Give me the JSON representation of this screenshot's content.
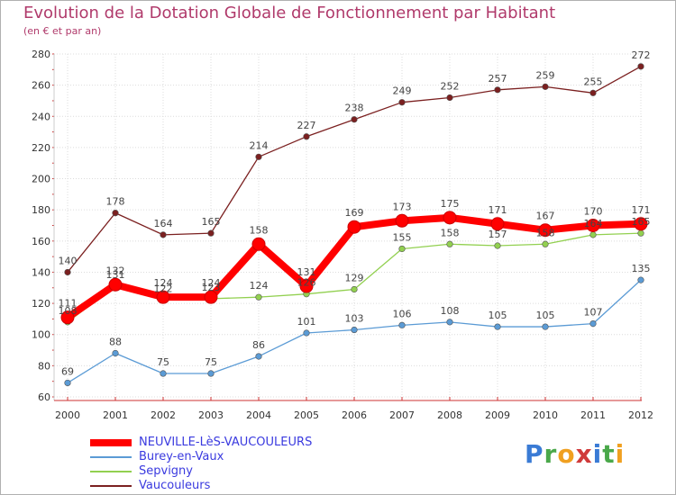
{
  "header": {
    "title": "Evolution de la Dotation Globale de Fonctionnement par Habitant",
    "subtitle": "(en € et par an)"
  },
  "logo": {
    "text": "Proxiti"
  },
  "chart_data": {
    "type": "line",
    "title": "Evolution de la Dotation Globale de Fonctionnement par Habitant",
    "subtitle": "(en € et par an)",
    "x": [
      "2000",
      "2001",
      "2002",
      "2003",
      "2004",
      "2005",
      "2006",
      "2007",
      "2008",
      "2009",
      "2010",
      "2011",
      "2012"
    ],
    "ylim": [
      60,
      280
    ],
    "yticks": [
      60,
      80,
      100,
      120,
      140,
      160,
      180,
      200,
      220,
      240,
      260,
      280
    ],
    "grid": true,
    "legend_position": "bottom-left",
    "series": [
      {
        "name": "NEUVILLE-LèS-VAUCOULEURS",
        "color": "#ff0000",
        "values": [
          111,
          132,
          124,
          124,
          158,
          131,
          169,
          173,
          175,
          171,
          167,
          170,
          171
        ]
      },
      {
        "name": "Burey-en-Vaux",
        "color": "#5b9bd5",
        "values": [
          69,
          88,
          75,
          75,
          86,
          101,
          103,
          106,
          108,
          105,
          105,
          107,
          135
        ]
      },
      {
        "name": "Sepvigny",
        "color": "#92d050",
        "values": [
          108,
          131,
          122,
          123,
          124,
          126,
          129,
          155,
          158,
          157,
          158,
          164,
          165
        ]
      },
      {
        "name": "Vaucouleurs",
        "color": "#7b2020",
        "values": [
          140,
          178,
          164,
          165,
          214,
          227,
          238,
          249,
          252,
          257,
          259,
          255,
          272
        ]
      }
    ]
  }
}
